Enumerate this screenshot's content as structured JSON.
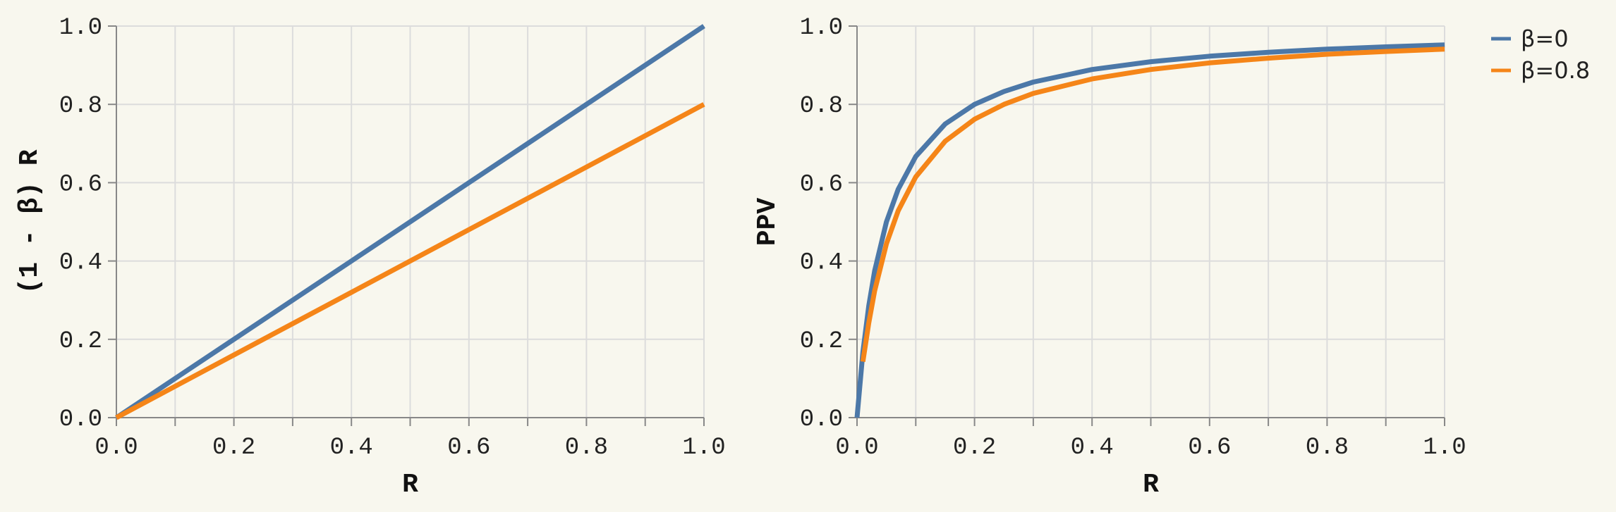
{
  "colors": {
    "background": "#f8f7ee",
    "grid": "#dcdcdc",
    "axis": "#888888",
    "series_blue": "#4c78a8",
    "series_orange": "#f58518"
  },
  "legend": {
    "items": [
      {
        "label": "β=0",
        "color": "#4c78a8"
      },
      {
        "label": "β=0.8",
        "color": "#f58518"
      }
    ],
    "placement": "right"
  },
  "chart_data": [
    {
      "type": "line",
      "title": "",
      "xlabel": "R",
      "ylabel": "(1 - β) R",
      "xlim": [
        0,
        1
      ],
      "ylim": [
        0,
        1
      ],
      "grid": true,
      "x_ticks": [
        "0.0",
        "0.2",
        "0.4",
        "0.6",
        "0.8",
        "1.0"
      ],
      "y_ticks": [
        "0.0",
        "0.2",
        "0.4",
        "0.6",
        "0.8",
        "1.0"
      ],
      "series": [
        {
          "name": "β=0",
          "x": [
            0,
            0.2,
            0.4,
            0.6,
            0.8,
            1.0
          ],
          "y": [
            0,
            0.2,
            0.4,
            0.6,
            0.8,
            1.0
          ]
        },
        {
          "name": "β=0.8",
          "x": [
            0,
            0.2,
            0.4,
            0.6,
            0.8,
            1.0
          ],
          "y": [
            0,
            0.16,
            0.32,
            0.48,
            0.64,
            0.8
          ]
        }
      ]
    },
    {
      "type": "line",
      "title": "",
      "xlabel": "R",
      "ylabel": "PPV",
      "xlim": [
        0,
        1
      ],
      "ylim": [
        0,
        1
      ],
      "grid": true,
      "x_ticks": [
        "0.0",
        "0.2",
        "0.4",
        "0.6",
        "0.8",
        "1.0"
      ],
      "y_ticks": [
        "0.0",
        "0.2",
        "0.4",
        "0.6",
        "0.8",
        "1.0"
      ],
      "series": [
        {
          "name": "β=0",
          "x": [
            0.0,
            0.01,
            0.02,
            0.03,
            0.05,
            0.07,
            0.1,
            0.15,
            0.2,
            0.25,
            0.3,
            0.4,
            0.5,
            0.6,
            0.7,
            0.8,
            0.9,
            1.0
          ],
          "y": [
            0.0,
            0.167,
            0.286,
            0.375,
            0.5,
            0.583,
            0.667,
            0.75,
            0.8,
            0.833,
            0.857,
            0.889,
            0.909,
            0.923,
            0.933,
            0.941,
            0.947,
            0.952
          ]
        },
        {
          "name": "β=0.8",
          "x": [
            0.01,
            0.02,
            0.03,
            0.05,
            0.07,
            0.1,
            0.15,
            0.2,
            0.25,
            0.3,
            0.4,
            0.5,
            0.6,
            0.7,
            0.8,
            0.9,
            1.0
          ],
          "y": [
            0.143,
            0.242,
            0.324,
            0.444,
            0.528,
            0.615,
            0.706,
            0.762,
            0.8,
            0.828,
            0.865,
            0.889,
            0.906,
            0.918,
            0.928,
            0.935,
            0.941
          ]
        }
      ]
    }
  ]
}
